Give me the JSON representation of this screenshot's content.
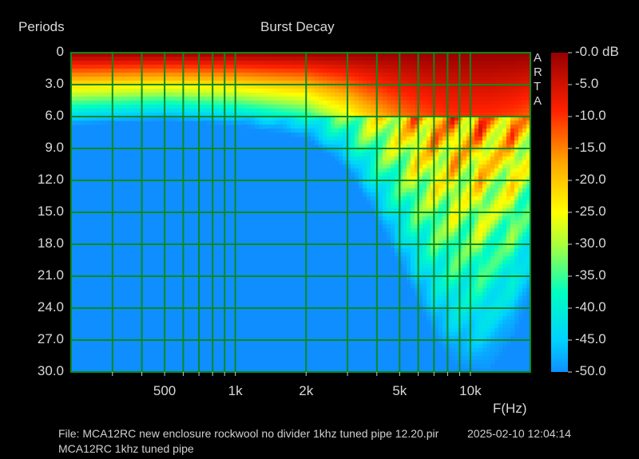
{
  "chart_data": {
    "type": "heatmap",
    "title": "Burst Decay",
    "ylabel": "Periods",
    "xlabel": "F(Hz)",
    "brand": "ARTA",
    "x_scale": "log",
    "xlim": [
      200,
      18000
    ],
    "ylim": [
      0,
      30
    ],
    "y_ticks": [
      "0",
      "3.0",
      "6.0",
      "9.0",
      "12.0",
      "15.0",
      "18.0",
      "21.0",
      "24.0",
      "27.0",
      "30.0"
    ],
    "x_tick_labels": [
      {
        "value": 500,
        "label": "500"
      },
      {
        "value": 1000,
        "label": "1k"
      },
      {
        "value": 2000,
        "label": "2k"
      },
      {
        "value": 5000,
        "label": "5k"
      },
      {
        "value": 10000,
        "label": "10k"
      }
    ],
    "x_gridlines": [
      300,
      400,
      500,
      600,
      700,
      800,
      900,
      1000,
      2000,
      3000,
      4000,
      5000,
      6000,
      7000,
      8000,
      9000,
      10000
    ],
    "colorbar": {
      "range_db": [
        -50,
        0
      ],
      "labels": [
        "-0.0 dB",
        "-5.0",
        "-10.0",
        "-15.0",
        "-20.0",
        "-25.0",
        "-30.0",
        "-35.0",
        "-40.0",
        "-45.0",
        "-50.0"
      ]
    },
    "decay_envelope": {
      "frequencies_hz": [
        200,
        500,
        1000,
        2000,
        3000,
        4000,
        5000,
        6000,
        7000,
        8000,
        9000,
        10000,
        12000,
        15000,
        18000
      ],
      "periods_to_minus50db": [
        6.8,
        6.3,
        6.8,
        8.0,
        11.0,
        15.5,
        20.0,
        23.5,
        26.5,
        28.5,
        29.5,
        30.0,
        30.0,
        27.0,
        23.0
      ]
    },
    "resonances_hz": [
      5800,
      7000,
      8500,
      11000,
      15000
    ],
    "grid": true,
    "colors": {
      "background": "#000000",
      "grid": "#0a8a1e",
      "floor": "#0f8fff"
    }
  },
  "footer": {
    "file": "File: MCA12RC new enclosure rockwool no divider 1khz tuned pipe 12.20.pir",
    "datetime": "2025-02-10  12:04:14",
    "note": "MCA12RC 1khz tuned pipe"
  }
}
